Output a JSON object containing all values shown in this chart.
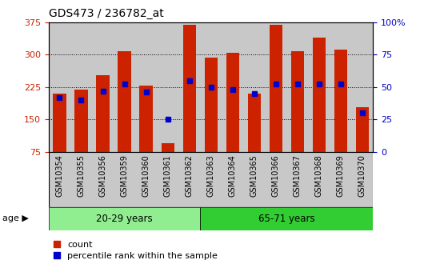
{
  "title": "GDS473 / 236782_at",
  "samples": [
    "GSM10354",
    "GSM10355",
    "GSM10356",
    "GSM10359",
    "GSM10360",
    "GSM10361",
    "GSM10362",
    "GSM10363",
    "GSM10364",
    "GSM10365",
    "GSM10366",
    "GSM10367",
    "GSM10368",
    "GSM10369",
    "GSM10370"
  ],
  "count_values": [
    210,
    218,
    252,
    308,
    228,
    95,
    368,
    293,
    304,
    210,
    368,
    308,
    340,
    312,
    178
  ],
  "percentile_values": [
    42,
    40,
    47,
    52,
    46,
    25,
    55,
    50,
    48,
    45,
    52,
    52,
    52,
    52,
    30
  ],
  "groups": [
    {
      "label": "20-29 years",
      "start": 0,
      "end": 7
    },
    {
      "label": "65-71 years",
      "start": 7,
      "end": 15
    }
  ],
  "group_colors": [
    "#90EE90",
    "#32CD32"
  ],
  "bar_color": "#CC2200",
  "marker_color": "#0000CC",
  "ylim_left": [
    75,
    375
  ],
  "ylim_right": [
    0,
    100
  ],
  "yticks_left": [
    75,
    150,
    225,
    300,
    375
  ],
  "yticks_right": [
    0,
    25,
    50,
    75,
    100
  ],
  "ytick_right_labels": [
    "0",
    "25",
    "50",
    "75",
    "100%"
  ],
  "bg_color": "#C8C8C8",
  "legend_count": "count",
  "legend_pct": "percentile rank within the sample",
  "left_axis_color": "#CC2200",
  "right_axis_color": "#0000CC",
  "bar_width": 0.6,
  "marker_size": 4
}
